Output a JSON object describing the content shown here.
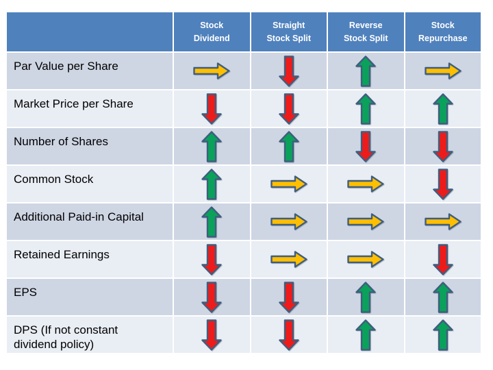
{
  "slide": {
    "header": {
      "columns": [
        "",
        "Stock\nDividend",
        "Straight\nStock Split",
        "Reverse\nStock Split",
        "Stock\nRepurchase"
      ]
    },
    "rows": [
      {
        "label": "Par Value per Share",
        "cells": [
          "right",
          "down",
          "up",
          "right"
        ]
      },
      {
        "label": "Market Price per Share",
        "cells": [
          "down",
          "down",
          "up",
          "up"
        ]
      },
      {
        "label": "Number of Shares",
        "cells": [
          "up",
          "up",
          "down",
          "down"
        ]
      },
      {
        "label": "Common Stock",
        "cells": [
          "up",
          "right",
          "right",
          "down"
        ]
      },
      {
        "label": "Additional Paid-in Capital",
        "cells": [
          "up",
          "right",
          "right",
          "right"
        ]
      },
      {
        "label": "Retained Earnings",
        "cells": [
          "down",
          "right",
          "right",
          "down"
        ]
      },
      {
        "label": "EPS",
        "cells": [
          "down",
          "down",
          "up",
          "up"
        ]
      },
      {
        "label": "DPS (If not constant\ndividend policy)",
        "cells": [
          "down",
          "down",
          "up",
          "up"
        ]
      }
    ],
    "arrow_meanings": {
      "up": "increase",
      "down": "decrease",
      "right": "no change"
    },
    "colors": {
      "header_bg": "#4F81BD",
      "header_text": "#FFFFFF",
      "row_dark": "#CED5E3",
      "row_light": "#E9EDF4",
      "arrow_up": "#0AA15B",
      "arrow_down": "#EE1B1B",
      "arrow_right": "#FFBF00",
      "arrow_border": "#3F5E7E"
    }
  }
}
